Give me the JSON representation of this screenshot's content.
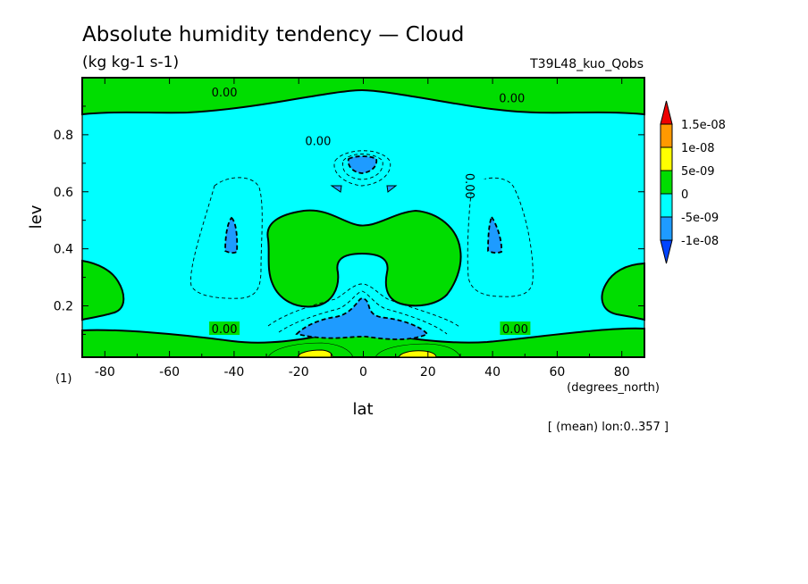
{
  "chart_data": {
    "type": "heatmap",
    "title": "Absolute humidity tendency — Cloud",
    "units": "(kg kg-1 s-1)",
    "experiment": "T39L48_kuo_Qobs",
    "xlabel": "lat",
    "x_units": "(degrees_north)",
    "ylabel": "lev",
    "y_units": "(1)",
    "xlim": [
      -87,
      87
    ],
    "ylim": [
      1.0,
      0.02
    ],
    "y_reversed": true,
    "x_ticks": [
      -80,
      -60,
      -40,
      -20,
      0,
      20,
      40,
      60,
      80
    ],
    "y_ticks": [
      0.2,
      0.4,
      0.6,
      0.8
    ],
    "y_tick_labels": [
      "0.2",
      "0.4",
      "0.6",
      "0.8"
    ],
    "footnote": "[ (mean) lon:0..357 ]",
    "colorbar": {
      "labels": [
        "1.5e-08",
        "1e-08",
        "5e-09",
        "0",
        "-5e-09",
        "-1e-08"
      ],
      "bins": [
        {
          "from": 1.5e-08,
          "to": null,
          "color": "#ee0000"
        },
        {
          "from": 1e-08,
          "to": 1.5e-08,
          "color": "#ff9900"
        },
        {
          "from": 5e-09,
          "to": 1e-08,
          "color": "#ffff00"
        },
        {
          "from": 0,
          "to": 5e-09,
          "color": "#00dd00"
        },
        {
          "from": -5e-09,
          "to": 0,
          "color": "#00ffff"
        },
        {
          "from": -1e-08,
          "to": -5e-09,
          "color": "#1e9bff"
        },
        {
          "from": null,
          "to": -1e-08,
          "color": "#0044ff"
        }
      ]
    },
    "contour_labels": [
      {
        "text": "0.00",
        "lat": -43,
        "lev": 0.12
      },
      {
        "text": "0.00",
        "lat": 47,
        "lev": 0.12
      },
      {
        "text": "0.00",
        "lat": -14,
        "lev": 0.78
      },
      {
        "text": "0.00",
        "lat": 33,
        "lev": 0.62
      },
      {
        "text": "0.00",
        "lat": -43,
        "lev": 0.95
      },
      {
        "text": "0.00",
        "lat": 46,
        "lev": 0.93
      }
    ]
  }
}
